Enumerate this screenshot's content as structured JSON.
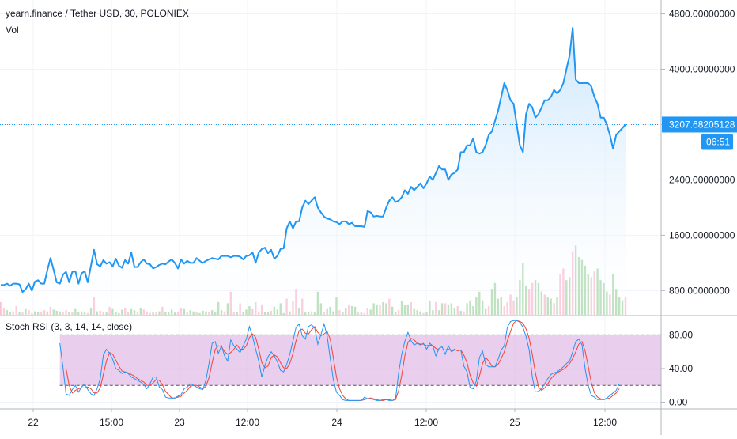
{
  "header": {
    "symbol_line": "yearn.finance / Tether USD, 30, POLONIEX",
    "volume_label": "Vol",
    "indicator_label": "Stoch RSI (3, 3, 14, 14, close)"
  },
  "colors": {
    "price_line": "#2196f3",
    "price_fill_top": "#bbdefb",
    "price_fill_bottom": "#ffffff",
    "vol_up": "#a5d6a7",
    "vol_down": "#f8bbd0",
    "stoch_k": "#2196f3",
    "stoch_d": "#f44336",
    "stoch_band": "#e1bee7",
    "grid": "#f0f3fa",
    "last_price_bg": "#2196f3"
  },
  "chart_data": [
    {
      "type": "line",
      "title": "yearn.finance / Tether USD, 30, POLONIEX",
      "series": [
        {
          "name": "yearn.finance / Tether USD",
          "values": [
            880,
            880,
            900,
            870,
            900,
            900,
            890,
            780,
            820,
            900,
            800,
            930,
            950,
            900,
            900,
            1100,
            1270,
            1100,
            920,
            900,
            1030,
            1070,
            920,
            1070,
            1080,
            900,
            1050,
            1080,
            920,
            1160,
            1390,
            1180,
            1150,
            1240,
            1190,
            1210,
            1150,
            1260,
            1160,
            1130,
            1240,
            1190,
            1350,
            1140,
            1140,
            1210,
            1250,
            1190,
            1180,
            1120,
            1140,
            1170,
            1190,
            1180,
            1220,
            1250,
            1200,
            1120,
            1250,
            1190,
            1230,
            1200,
            1200,
            1270,
            1230,
            1200,
            1230,
            1250,
            1270,
            1260,
            1250,
            1300,
            1300,
            1300,
            1280,
            1300,
            1300,
            1290,
            1250,
            1300,
            1310,
            1350,
            1200,
            1350,
            1400,
            1420,
            1340,
            1390,
            1260,
            1300,
            1400,
            1410,
            1700,
            1800,
            1700,
            1800,
            1800,
            2000,
            2100,
            2050,
            2100,
            2150,
            2000,
            1930,
            1870,
            1840,
            1830,
            1800,
            1790,
            1760,
            1800,
            1800,
            1760,
            1780,
            1730,
            1730,
            1730,
            1720,
            1950,
            1930,
            1870,
            1880,
            1870,
            1870,
            2000,
            2100,
            2150,
            2080,
            2100,
            2150,
            2250,
            2200,
            2300,
            2250,
            2300,
            2350,
            2280,
            2350,
            2450,
            2400,
            2500,
            2600,
            2550,
            2550,
            2400,
            2480,
            2500,
            2550,
            2800,
            2800,
            2900,
            2900,
            3000,
            2800,
            2780,
            2800,
            2900,
            3050,
            3100,
            3250,
            3400,
            3600,
            3800,
            3700,
            3550,
            3500,
            3200,
            2900,
            2800,
            3350,
            3500,
            3450,
            3300,
            3350,
            3450,
            3550,
            3550,
            3600,
            3700,
            3650,
            3700,
            3800,
            4000,
            4200,
            4600,
            3850,
            3800,
            3800,
            3800,
            3800,
            3750,
            3600,
            3500,
            3300,
            3300,
            3200,
            3050,
            2850,
            3050,
            3100,
            3150,
            3200
          ]
        }
      ],
      "y_axis": {
        "ticks": [
          "800.00000000",
          "1600.00000000",
          "2400.00000000",
          "3200.00000000",
          "4000.00000000",
          "4800.00000000"
        ],
        "ylim": [
          450,
          5000
        ]
      },
      "last_value_label": "3207.68205128",
      "countdown_label": "06:51",
      "x_axis": {
        "ticks": [
          "22",
          "15:00",
          "23",
          "12:00",
          "24",
          "12:00",
          "25",
          "12:00"
        ]
      },
      "grid": true
    },
    {
      "type": "bar",
      "title": "Vol",
      "series": [
        {
          "values": [
            22,
            12,
            8,
            4,
            6,
            15,
            5,
            4,
            10,
            8,
            3,
            6,
            5,
            4,
            8,
            6,
            14,
            9,
            7,
            6,
            4,
            8,
            5,
            5,
            10,
            4,
            6,
            4,
            3,
            12,
            30,
            6,
            7,
            5,
            4,
            14,
            10,
            5,
            3,
            9,
            12,
            4,
            10,
            8,
            4,
            12,
            9,
            6,
            3,
            4,
            4,
            6,
            14,
            5,
            5,
            9,
            4,
            4,
            12,
            10,
            5,
            8,
            6,
            4,
            3,
            7,
            6,
            5,
            8,
            4,
            22,
            8,
            6,
            20,
            40,
            4,
            4,
            20,
            5,
            9,
            15,
            10,
            22,
            5,
            18,
            5,
            4,
            7,
            14,
            9,
            20,
            3,
            28,
            6,
            24,
            45,
            12,
            28,
            4,
            5,
            6,
            4,
            40,
            20,
            5,
            10,
            14,
            6,
            30,
            8,
            5,
            12,
            18,
            15,
            14,
            4,
            4,
            3,
            12,
            9,
            20,
            18,
            18,
            22,
            20,
            28,
            14,
            5,
            8,
            24,
            17,
            18,
            22,
            10,
            8,
            6,
            3,
            4,
            25,
            8,
            22,
            8,
            20,
            20,
            18,
            20,
            12,
            15,
            7,
            6,
            20,
            25,
            15,
            30,
            40,
            25,
            10,
            15,
            45,
            55,
            28,
            30,
            15,
            22,
            35,
            25,
            30,
            60,
            90,
            50,
            45,
            55,
            60,
            55,
            40,
            35,
            30,
            28,
            20,
            30,
            70,
            80,
            60,
            65,
            110,
            120,
            100,
            95,
            85,
            70,
            65,
            75,
            80,
            60,
            55,
            40,
            35,
            70,
            45,
            30,
            25,
            30,
            28,
            20,
            15
          ]
        }
      ],
      "up_flags": "0011001010011001011100101111010100101111001101000101011110010110111011110100101110000110111101001011011101111011011010011101101101110111011101101110101111111011110000111100111011010011011111001111011110101"
    },
    {
      "type": "line",
      "title": "Stoch RSI (3, 3, 14, 14, close)",
      "series": [
        {
          "name": "%K",
          "values": [
            null,
            null,
            null,
            null,
            null,
            null,
            null,
            null,
            null,
            null,
            null,
            null,
            null,
            null,
            null,
            null,
            null,
            null,
            null,
            70,
            42,
            10,
            8,
            15,
            20,
            12,
            18,
            22,
            15,
            10,
            8,
            16,
            28,
            56,
            63,
            58,
            51,
            40,
            38,
            34,
            36,
            34,
            30,
            28,
            26,
            24,
            21,
            16,
            22,
            30,
            30,
            18,
            15,
            6,
            5,
            5,
            5,
            7,
            9,
            16,
            18,
            22,
            20,
            18,
            16,
            15,
            26,
            46,
            70,
            72,
            58,
            67,
            55,
            49,
            74,
            67,
            63,
            59,
            67,
            75,
            90,
            78,
            63,
            49,
            30,
            44,
            54,
            60,
            55,
            48,
            38,
            36,
            45,
            57,
            73,
            89,
            93,
            79,
            75,
            90,
            92,
            88,
            69,
            80,
            93,
            79,
            52,
            27,
            12,
            8,
            3,
            2,
            2,
            2,
            2,
            2,
            2,
            6,
            4,
            4,
            3,
            2,
            2,
            3,
            3,
            2,
            2,
            4,
            35,
            57,
            72,
            83,
            73,
            68,
            70,
            68,
            70,
            63,
            70,
            67,
            55,
            64,
            66,
            57,
            67,
            60,
            62,
            62,
            62,
            43,
            36,
            17,
            16,
            25,
            53,
            61,
            45,
            42,
            42,
            42,
            51,
            62,
            67,
            89,
            96,
            97,
            97,
            95,
            89,
            78,
            62,
            30,
            12,
            13,
            16,
            22,
            28,
            33,
            35,
            36,
            39,
            42,
            46,
            49,
            60,
            72,
            75,
            68,
            40,
            20,
            8,
            6,
            3,
            3,
            3,
            5,
            8,
            11,
            14,
            22
          ]
        },
        {
          "name": "%D",
          "values": [
            null,
            null,
            null,
            null,
            null,
            null,
            null,
            null,
            null,
            null,
            null,
            null,
            null,
            null,
            null,
            null,
            null,
            null,
            null,
            null,
            null,
            40,
            20,
            11,
            14,
            16,
            17,
            17,
            18,
            16,
            11,
            11,
            17,
            33,
            49,
            59,
            57,
            50,
            43,
            37,
            36,
            35,
            33,
            31,
            28,
            26,
            24,
            20,
            20,
            23,
            27,
            26,
            21,
            13,
            9,
            5,
            5,
            6,
            7,
            11,
            14,
            19,
            20,
            20,
            18,
            16,
            19,
            29,
            47,
            63,
            67,
            66,
            60,
            57,
            59,
            63,
            68,
            63,
            63,
            67,
            77,
            81,
            77,
            63,
            47,
            41,
            43,
            53,
            56,
            54,
            47,
            41,
            40,
            46,
            58,
            73,
            85,
            87,
            82,
            81,
            86,
            90,
            83,
            79,
            81,
            84,
            75,
            53,
            30,
            16,
            8,
            4,
            2,
            2,
            2,
            2,
            2,
            3,
            4,
            5,
            4,
            3,
            2,
            2,
            3,
            3,
            2,
            3,
            14,
            32,
            55,
            71,
            76,
            74,
            70,
            69,
            69,
            67,
            68,
            67,
            64,
            62,
            62,
            62,
            63,
            61,
            63,
            61,
            62,
            56,
            47,
            32,
            23,
            19,
            31,
            46,
            53,
            49,
            43,
            42,
            45,
            52,
            60,
            73,
            84,
            94,
            97,
            96,
            94,
            87,
            76,
            57,
            35,
            18,
            14,
            17,
            22,
            28,
            32,
            35,
            37,
            39,
            42,
            46,
            52,
            60,
            69,
            72,
            61,
            43,
            23,
            11,
            6,
            4,
            3,
            4,
            5,
            8,
            11,
            16
          ]
        }
      ],
      "y_axis": {
        "ticks": [
          "0.00",
          "40.00",
          "80.00"
        ],
        "ylim": [
          -8,
          102
        ]
      },
      "band": [
        20,
        80
      ]
    }
  ]
}
